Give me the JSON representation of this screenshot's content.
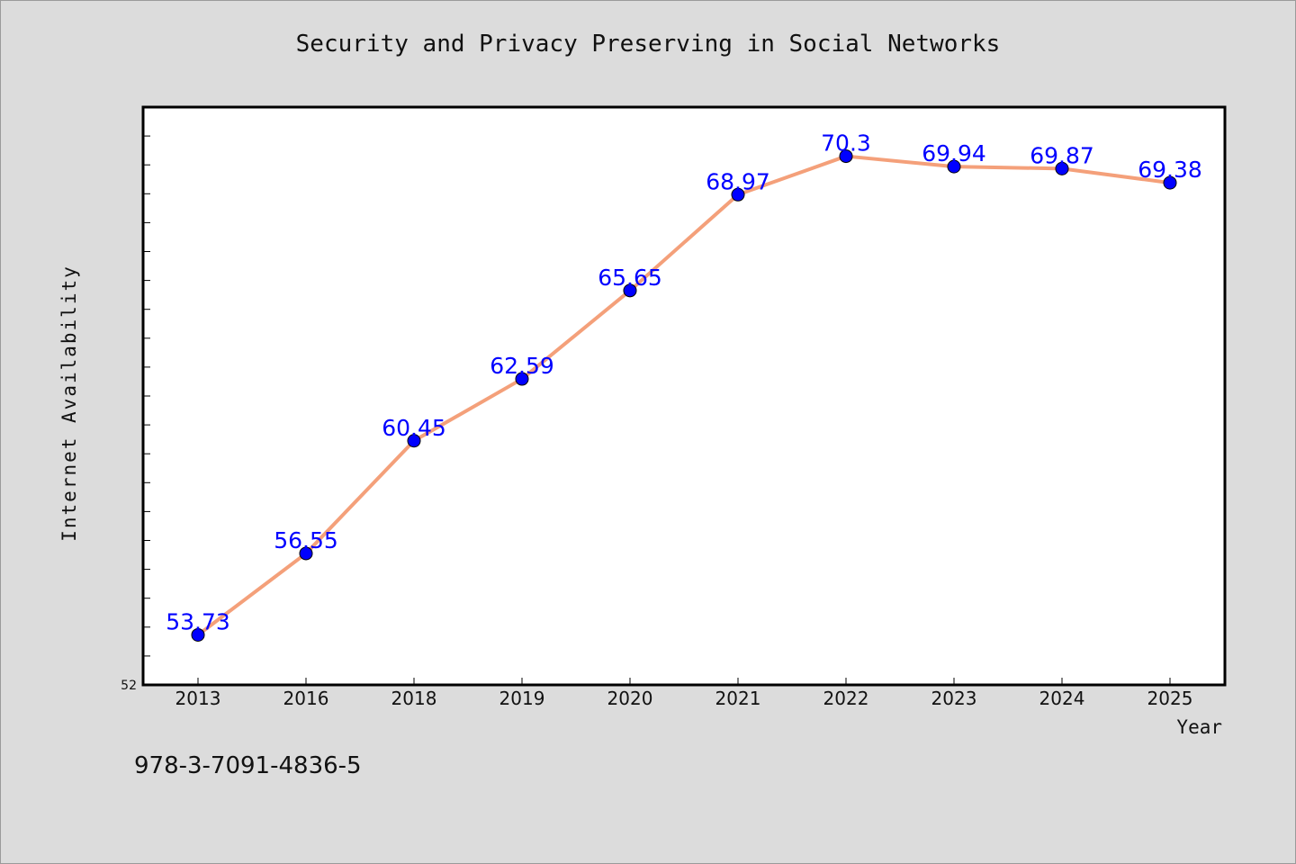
{
  "chart_data": {
    "type": "line",
    "title": "Security and Privacy Preserving in Social Networks",
    "xlabel": "Year",
    "ylabel": "Internet Availability",
    "categories": [
      "2013",
      "2016",
      "2018",
      "2019",
      "2020",
      "2021",
      "2022",
      "2023",
      "2024",
      "2025"
    ],
    "series": [
      {
        "values": [
          53.73,
          56.55,
          60.45,
          62.59,
          65.65,
          68.97,
          70.3,
          69.94,
          69.87,
          69.38
        ],
        "labels": [
          "53.73",
          "56.55",
          "60.45",
          "62.59",
          "65.65",
          "68.97",
          "70.3",
          "69.94",
          "69.87",
          "69.38"
        ],
        "line_color": "#f4a07a",
        "marker_color": "#0000ff"
      }
    ],
    "ylim": [
      52,
      72
    ],
    "y_tick_labels": [
      "52"
    ],
    "grid": false,
    "legend": "none",
    "data_label_color": "#0000ff"
  },
  "footer": {
    "isbn": "978-3-7091-4836-5"
  },
  "colors": {
    "background": "#dcdcdc",
    "plot_background": "#ffffff",
    "axis": "#000000"
  }
}
